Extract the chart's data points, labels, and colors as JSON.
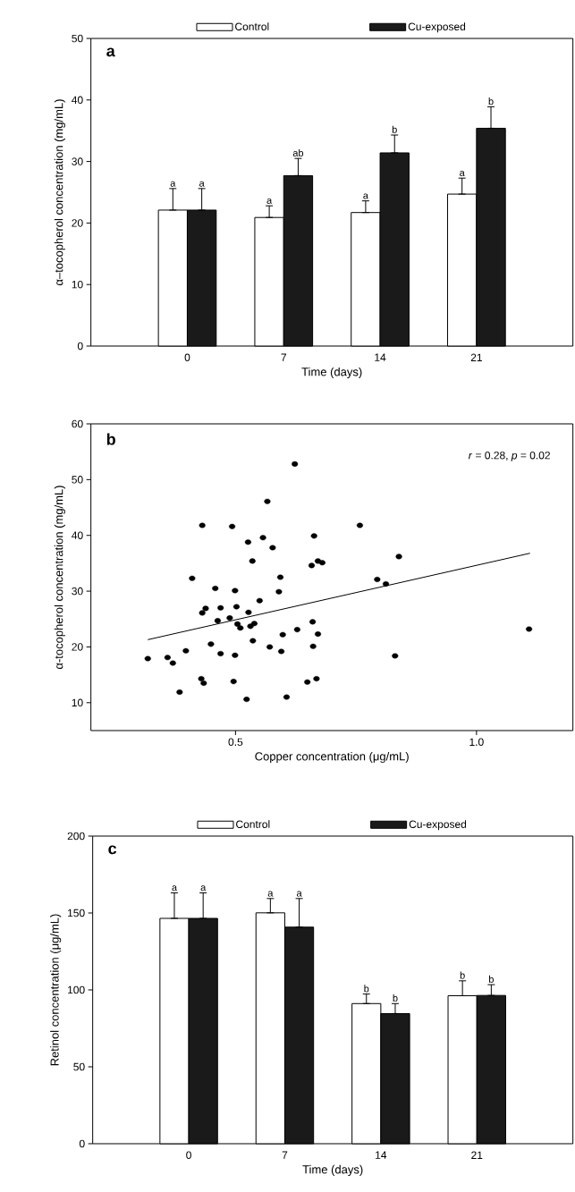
{
  "chart_data": [
    {
      "type": "bar",
      "categories": [
        "0",
        "7",
        "14",
        "21"
      ],
      "xlabel": "Time (days)",
      "ylabel": "α–tocopherol concentration (mg/mL)",
      "ylim": [
        0,
        50
      ],
      "yticks": [
        0,
        10,
        20,
        30,
        40,
        50
      ],
      "legend": "top",
      "annotations": [
        "a"
      ],
      "series": [
        {
          "name": "Control",
          "color": "#ffffff",
          "values": [
            22.1,
            20.9,
            21.7,
            24.7
          ],
          "errors": [
            [
              22.1,
              25.6
            ],
            [
              20.9,
              22.8
            ],
            [
              21.7,
              23.6
            ],
            [
              24.7,
              27.3
            ]
          ],
          "value_labels": [
            "a",
            "a",
            "a",
            "a"
          ]
        },
        {
          "name": "Cu-exposed",
          "color": "#1a1a1a",
          "values": [
            22.1,
            27.7,
            31.4,
            35.4
          ],
          "errors": [
            [
              22.1,
              25.6
            ],
            [
              27.7,
              30.5
            ],
            [
              31.4,
              34.3
            ],
            [
              35.4,
              38.9
            ]
          ],
          "value_labels": [
            "a",
            "ab",
            "b",
            "b"
          ]
        }
      ]
    },
    {
      "type": "scatter",
      "xlabel": "Copper concentration (μg/mL)",
      "ylabel": "α-tocopherol concentration (mg/mL)",
      "xlim": [
        0.2,
        1.2
      ],
      "xticks": [
        0.5,
        {
          "value": 1.0,
          "label": "1.0"
        }
      ],
      "ylim": [
        5,
        60
      ],
      "yticks": [
        10,
        20,
        30,
        40,
        50,
        60
      ],
      "annotations": [
        "b",
        "*r* = 0.28, *p* = 0.02"
      ],
      "series": [
        {
          "type": "scatter",
          "marker": "circle",
          "color": "#000000",
          "x": [
            0.318,
            0.359,
            0.37,
            0.384,
            0.397,
            0.41,
            0.431,
            0.431,
            0.438,
            0.429,
            0.434,
            0.449,
            0.458,
            0.463,
            0.469,
            0.469,
            0.488,
            0.493,
            0.496,
            0.499,
            0.499,
            0.502,
            0.504,
            0.51,
            0.523,
            0.526,
            0.527,
            0.531,
            0.535,
            0.536,
            0.539,
            0.55,
            0.557,
            0.566,
            0.571,
            0.577,
            0.59,
            0.593,
            0.595,
            0.598,
            0.606,
            0.623,
            0.628,
            0.649,
            0.658,
            0.66,
            0.661,
            0.663,
            0.668,
            0.671,
            0.671,
            0.68,
            0.758,
            0.794,
            0.812,
            0.831,
            0.839,
            1.109
          ],
          "values": [
            17.9,
            18.1,
            17.1,
            11.9,
            19.3,
            32.3,
            41.8,
            26.1,
            26.9,
            14.3,
            13.5,
            20.5,
            30.5,
            24.7,
            27.0,
            18.8,
            25.2,
            41.6,
            13.8,
            30.1,
            18.5,
            27.2,
            24.1,
            23.4,
            10.6,
            38.8,
            26.2,
            23.7,
            35.4,
            21.1,
            24.2,
            28.3,
            39.6,
            46.1,
            20.0,
            37.8,
            29.9,
            32.5,
            19.2,
            22.2,
            11.0,
            52.8,
            23.1,
            13.7,
            34.6,
            24.5,
            20.1,
            39.9,
            14.3,
            22.3,
            35.4,
            35.1,
            41.8,
            32.1,
            31.3,
            18.4,
            36.2,
            23.2
          ]
        },
        {
          "type": "line",
          "color": "#000000",
          "x": [
            0.318,
            1.111
          ],
          "values": [
            21.3,
            36.8
          ]
        }
      ]
    },
    {
      "type": "bar",
      "categories": [
        "0",
        "7",
        "14",
        "21"
      ],
      "xlabel": "Time (days)",
      "ylabel": "Retinol concentration (μg/mL)",
      "ylim": [
        0,
        200
      ],
      "yticks": [
        0,
        50,
        100,
        150,
        200
      ],
      "legend": "top",
      "annotations": [
        "c"
      ],
      "series": [
        {
          "name": "Control",
          "color": "#ffffff",
          "values": [
            146.5,
            150.1,
            91.1,
            96.2
          ],
          "errors": [
            [
              146.5,
              163.1
            ],
            [
              150.1,
              159.4
            ],
            [
              91.1,
              97.3
            ],
            [
              96.2,
              105.9
            ]
          ],
          "value_labels": [
            "a",
            "a",
            "b",
            "b"
          ]
        },
        {
          "name": "Cu-exposed",
          "color": "#1a1a1a",
          "values": [
            146.5,
            140.8,
            84.6,
            96.4
          ],
          "errors": [
            [
              146.5,
              163.1
            ],
            [
              140.8,
              159.4
            ],
            [
              84.6,
              91.1
            ],
            [
              96.4,
              103.4
            ]
          ],
          "value_labels": [
            "a",
            "a",
            "b",
            "b"
          ]
        }
      ]
    }
  ]
}
